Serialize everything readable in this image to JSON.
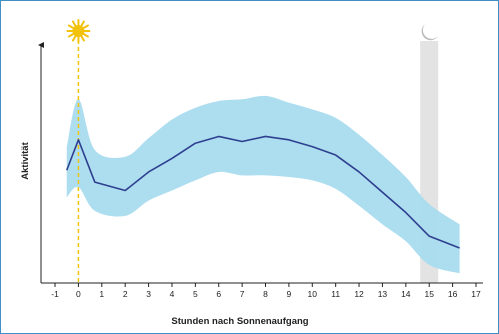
{
  "chart_data": {
    "type": "line",
    "title": "",
    "xlabel": "Stunden nach Sonnenaufgang",
    "ylabel": "Aktivität",
    "xlim": [
      -1.6,
      17.3
    ],
    "ylim": [
      0,
      100
    ],
    "grid": false,
    "xticks": [
      -1,
      0,
      1,
      2,
      3,
      4,
      5,
      6,
      7,
      8,
      9,
      10,
      11,
      12,
      13,
      14,
      15,
      16,
      17
    ],
    "xtick_labels": [
      "-1",
      "0",
      "1",
      "2",
      "3",
      "4",
      "5",
      "6",
      "7",
      "8",
      "9",
      "10",
      "11",
      "12",
      "13",
      "14",
      "15",
      "16",
      "17"
    ],
    "series": [
      {
        "x": [
          -0.5,
          0,
          0.7,
          2,
          3,
          4,
          5,
          6,
          7,
          8,
          9,
          10,
          11,
          12,
          13,
          14,
          15,
          16.3
        ],
        "values": [
          46,
          64,
          39,
          34,
          45,
          53,
          62,
          66,
          63,
          66,
          64,
          60,
          55,
          45,
          33,
          21,
          7,
          0
        ],
        "upper": [
          60,
          88,
          58,
          54,
          65,
          76,
          83,
          87,
          88,
          90,
          86,
          82,
          77,
          67,
          55,
          42,
          26,
          14
        ],
        "lower": [
          30,
          36,
          22,
          19,
          28,
          34,
          40,
          45,
          43,
          43,
          42,
          40,
          35,
          25,
          14,
          4,
          -10,
          -15
        ]
      }
    ],
    "markers": [
      {
        "x": 0,
        "icon": "sun-icon",
        "color": "#f2c20c"
      },
      {
        "x": 15,
        "icon": "moon-icon",
        "color": "#bdbdbd"
      }
    ],
    "colors": {
      "line": "#2e3f8f",
      "band": "#a9dcef",
      "sunrise_line": "#f2c20c",
      "sunset_band": "#d9d9d9",
      "frame": "#3f8fc6"
    }
  }
}
